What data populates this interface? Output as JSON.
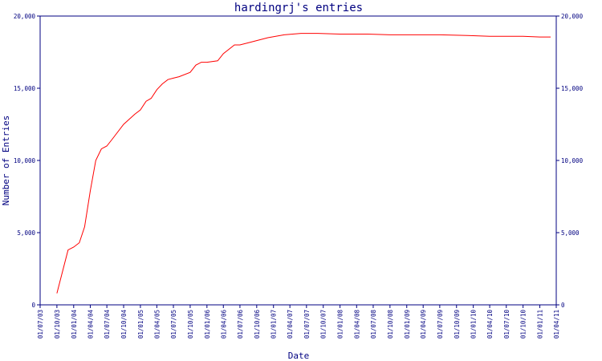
{
  "chart_data": {
    "type": "line",
    "title": "hardingrj's entries",
    "xlabel": "Date",
    "ylabel": "Number of Entries",
    "ylim": [
      0,
      20000
    ],
    "y_ticks": [
      0,
      5000,
      10000,
      15000,
      20000
    ],
    "y_tick_labels": [
      "0",
      "5,000",
      "10,000",
      "15,000",
      "20,000"
    ],
    "x_tick_labels": [
      "01/07/03",
      "01/10/03",
      "01/01/04",
      "01/04/04",
      "01/07/04",
      "01/10/04",
      "01/01/05",
      "01/04/05",
      "01/07/05",
      "01/10/05",
      "01/01/06",
      "01/04/06",
      "01/07/06",
      "01/10/06",
      "01/01/07",
      "01/04/07",
      "01/07/07",
      "01/10/07",
      "01/01/08",
      "01/04/08",
      "01/07/08",
      "01/10/08",
      "01/01/09",
      "01/04/09",
      "01/07/09",
      "01/10/09",
      "01/01/10",
      "01/04/10",
      "01/07/10",
      "01/10/10",
      "01/01/11",
      "01/04/11"
    ],
    "grid": false,
    "line_color": "#ff0000",
    "axis_color": "#000080",
    "series": [
      {
        "x": [
          "2003-10-01",
          "2003-12-01",
          "2004-01-01",
          "2004-02-01",
          "2004-03-01",
          "2004-04-01",
          "2004-05-01",
          "2004-06-01",
          "2004-07-01",
          "2004-08-01",
          "2004-10-01",
          "2004-12-01",
          "2005-01-01",
          "2005-02-01",
          "2005-03-01",
          "2005-04-01",
          "2005-05-01",
          "2005-06-01",
          "2005-07-01",
          "2005-08-01",
          "2005-10-01",
          "2005-11-01",
          "2005-12-01",
          "2006-01-01",
          "2006-03-01",
          "2006-04-01",
          "2006-06-01",
          "2006-07-01",
          "2006-09-01",
          "2006-12-01",
          "2007-03-01",
          "2007-06-01",
          "2007-09-01",
          "2008-01-01",
          "2008-06-01",
          "2008-10-01",
          "2009-03-01",
          "2009-07-01",
          "2009-12-01",
          "2010-04-01",
          "2010-10-01",
          "2011-01-01",
          "2011-03-01"
        ],
        "y": [
          800,
          3800,
          4000,
          4300,
          5400,
          7900,
          10000,
          10800,
          11000,
          11500,
          12500,
          13200,
          13500,
          14100,
          14300,
          14900,
          15300,
          15600,
          15700,
          15800,
          16100,
          16600,
          16800,
          16800,
          16900,
          17400,
          18000,
          18000,
          18200,
          18500,
          18700,
          18800,
          18800,
          18750,
          18750,
          18700,
          18700,
          18700,
          18650,
          18600,
          18600,
          18550,
          18550
        ]
      }
    ]
  }
}
